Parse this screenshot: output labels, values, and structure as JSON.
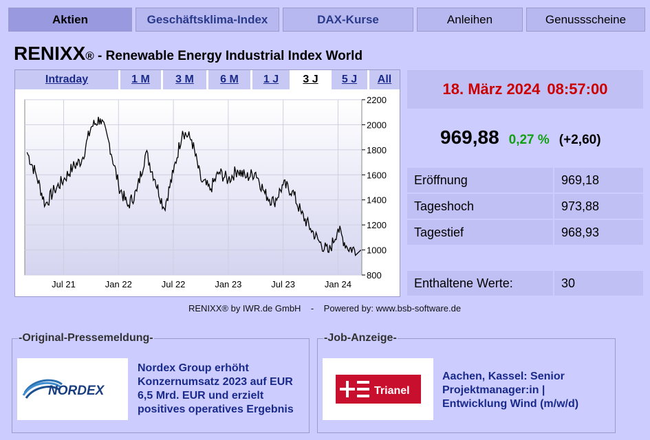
{
  "nav": {
    "tabs": [
      {
        "label": "Aktien"
      },
      {
        "label": "Geschäftsklima-Index"
      },
      {
        "label": "DAX-Kurse"
      },
      {
        "label": "Anleihen"
      },
      {
        "label": "Genussscheine"
      }
    ]
  },
  "header": {
    "name": "RENIXX",
    "reg": "®",
    "subtitle": " - Renewable Energy Industrial Index World"
  },
  "range_tabs": [
    "Intraday",
    "1 M",
    "3 M",
    "6 M",
    "1 J",
    "3 J",
    "5 J",
    "All"
  ],
  "chart_data": {
    "type": "line",
    "title": "",
    "xlabel": "",
    "ylabel": "",
    "ylim": [
      800,
      2200
    ],
    "y_ticks": [
      "800",
      "1000",
      "1200",
      "1400",
      "1600",
      "1800",
      "2000",
      "2200"
    ],
    "x_ticks": [
      "Jul 21",
      "Jan 22",
      "Jul 22",
      "Jan 23",
      "Jul 23",
      "Jan 24"
    ],
    "grid": true,
    "series": [
      {
        "name": "",
        "color": "#000000",
        "x": [
          "2021-03",
          "2021-04",
          "2021-05",
          "2021-06",
          "2021-07",
          "2021-08",
          "2021-09",
          "2021-10",
          "2021-11",
          "2021-12",
          "2022-01",
          "2022-02",
          "2022-03",
          "2022-04",
          "2022-05",
          "2022-06",
          "2022-07",
          "2022-08",
          "2022-09",
          "2022-10",
          "2022-11",
          "2022-12",
          "2023-01",
          "2023-02",
          "2023-03",
          "2023-04",
          "2023-05",
          "2023-06",
          "2023-07",
          "2023-08",
          "2023-09",
          "2023-10",
          "2023-11",
          "2023-12",
          "2024-01",
          "2024-02",
          "2024-03"
        ],
        "values": [
          1780,
          1600,
          1360,
          1480,
          1560,
          1660,
          1720,
          1980,
          2050,
          1850,
          1520,
          1350,
          1470,
          1780,
          1560,
          1330,
          1620,
          1950,
          1880,
          1560,
          1480,
          1620,
          1560,
          1640,
          1580,
          1620,
          1450,
          1380,
          1520,
          1470,
          1290,
          1170,
          1060,
          980,
          1170,
          1020,
          1000
        ]
      }
    ]
  },
  "quote": {
    "date": "18. März  2024",
    "time": "08:57:00",
    "price": "969,88",
    "pct": "0,27 %",
    "abs": "(+2,60)"
  },
  "stats": [
    {
      "label": "Eröffnung",
      "value": "969,18"
    },
    {
      "label": "Tageshoch",
      "value": "973,88"
    },
    {
      "label": "Tagestief",
      "value": "968,93"
    }
  ],
  "constituents": {
    "label": "Enthaltene Werte:",
    "value": "30"
  },
  "credit": "RENIXX® by IWR.de GmbH    -    Powered by: www.bsb-software.de",
  "press": {
    "legend": "-Original-Pressemeldung-",
    "logo_text": "NORDEX",
    "headline": "Nordex Group erhöht Konzernumsatz 2023 auf EUR 6,5 Mrd. EUR und erzielt positives operatives Ergebnis"
  },
  "job": {
    "legend": "-Job-Anzeige-",
    "logo_text": "Trianel",
    "text": "Aachen, Kassel: Senior Projektmanager:in | Entwicklung Wind (m/w/d)"
  }
}
